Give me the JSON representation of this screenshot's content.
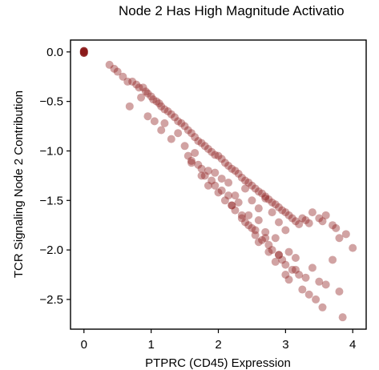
{
  "chart_data": {
    "type": "scatter",
    "title": "Node 2 Has High Magnitude Activatio",
    "xlabel": "PTPRC (CD45) Expression",
    "ylabel": "TCR Signaling Node 2 Contribution",
    "xlim": [
      -0.2,
      4.2
    ],
    "ylim": [
      -2.8,
      0.12
    ],
    "xticks": [
      0,
      1,
      2,
      3,
      4
    ],
    "xtick_labels": [
      "0",
      "1",
      "2",
      "3",
      "4"
    ],
    "yticks": [
      0.0,
      -0.5,
      -1.0,
      -1.5,
      -2.0,
      -2.5
    ],
    "ytick_labels": [
      "0.0",
      "−0.5",
      "−1.0",
      "−1.5",
      "−2.0",
      "−2.5"
    ],
    "grid": false,
    "color": "#8b1a1a",
    "point_alpha": 0.4,
    "series": [
      {
        "x": [
          0.0,
          0.0,
          0.0,
          0.38,
          0.45,
          0.5,
          0.58,
          0.65,
          0.72,
          0.78,
          0.82,
          0.88,
          0.92,
          0.95,
          1.0,
          1.03,
          1.08,
          1.12,
          1.15,
          1.2,
          1.25,
          1.3,
          1.35,
          1.4,
          1.45,
          1.5,
          1.55,
          1.6,
          1.65,
          1.7,
          1.75,
          1.8,
          1.85,
          1.9,
          1.95,
          2.0,
          2.05,
          2.1,
          2.15,
          2.2,
          2.25,
          2.3,
          2.35,
          2.4,
          2.45,
          2.5,
          2.55,
          2.6,
          2.65,
          2.7,
          2.75,
          2.8,
          2.85,
          2.9,
          2.95,
          3.0,
          3.05,
          3.1,
          3.15,
          3.2,
          3.25,
          3.3,
          3.35,
          3.4,
          3.5,
          3.55,
          3.6,
          3.7,
          3.75,
          3.8,
          3.9,
          4.0,
          0.68,
          0.85,
          0.95,
          1.05,
          1.15,
          1.2,
          1.3,
          1.4,
          1.5,
          1.55,
          1.6,
          1.65,
          1.7,
          1.75,
          1.8,
          1.85,
          1.9,
          1.95,
          2.0,
          2.05,
          2.1,
          2.15,
          2.2,
          2.25,
          2.3,
          2.35,
          2.4,
          2.45,
          2.5,
          2.55,
          2.6,
          2.65,
          2.7,
          2.75,
          2.8,
          2.85,
          2.9,
          2.95,
          3.0,
          3.05,
          3.1,
          3.15,
          3.2,
          3.3,
          3.4,
          3.5,
          3.6,
          3.7,
          3.85,
          2.2,
          2.35,
          2.45,
          2.55,
          2.6,
          2.7,
          2.75,
          2.85,
          2.9,
          3.0,
          3.05,
          3.15,
          3.25,
          3.35,
          3.45,
          3.55,
          3.8,
          1.6,
          1.75,
          1.85,
          1.95,
          2.05,
          2.15,
          2.25,
          2.4,
          2.5,
          2.6,
          2.7,
          2.8,
          2.9,
          3.0
        ],
        "y": [
          0.0,
          -0.01,
          0.01,
          -0.13,
          -0.17,
          -0.2,
          -0.25,
          -0.3,
          -0.3,
          -0.33,
          -0.36,
          -0.36,
          -0.4,
          -0.42,
          -0.45,
          -0.48,
          -0.5,
          -0.52,
          -0.55,
          -0.58,
          -0.6,
          -0.63,
          -0.66,
          -0.7,
          -0.72,
          -0.75,
          -0.79,
          -0.82,
          -0.86,
          -0.9,
          -0.92,
          -0.95,
          -0.98,
          -1.01,
          -1.04,
          -1.05,
          -1.08,
          -1.12,
          -1.15,
          -1.18,
          -1.2,
          -1.23,
          -1.27,
          -1.3,
          -1.32,
          -1.35,
          -1.38,
          -1.41,
          -1.43,
          -1.46,
          -1.49,
          -1.52,
          -1.54,
          -1.57,
          -1.6,
          -1.62,
          -1.65,
          -1.68,
          -1.71,
          -1.74,
          -1.68,
          -1.7,
          -1.73,
          -1.62,
          -1.68,
          -1.71,
          -1.65,
          -1.75,
          -1.78,
          -1.88,
          -1.84,
          -1.98,
          -0.55,
          -0.46,
          -0.65,
          -0.7,
          -0.79,
          -0.72,
          -0.88,
          -0.82,
          -0.95,
          -1.05,
          -1.1,
          -1.02,
          -1.14,
          -1.18,
          -1.25,
          -1.2,
          -1.3,
          -1.35,
          -1.42,
          -1.28,
          -1.5,
          -1.45,
          -1.55,
          -1.6,
          -1.52,
          -1.68,
          -1.72,
          -1.65,
          -1.78,
          -1.85,
          -1.7,
          -1.9,
          -1.82,
          -1.95,
          -2.0,
          -1.88,
          -2.05,
          -2.1,
          -2.15,
          -2.02,
          -2.2,
          -2.08,
          -2.25,
          -2.28,
          -2.18,
          -2.32,
          -2.35,
          -2.1,
          -2.68,
          -1.55,
          -1.65,
          -1.75,
          -1.8,
          -1.92,
          -1.88,
          -2.02,
          -2.12,
          -2.05,
          -2.25,
          -2.3,
          -2.2,
          -2.4,
          -2.45,
          -2.5,
          -2.58,
          -2.42,
          -1.12,
          -1.25,
          -1.35,
          -1.22,
          -1.4,
          -1.32,
          -1.45,
          -1.38,
          -1.5,
          -1.58,
          -1.48,
          -1.62,
          -1.72,
          -1.8
        ]
      }
    ]
  }
}
